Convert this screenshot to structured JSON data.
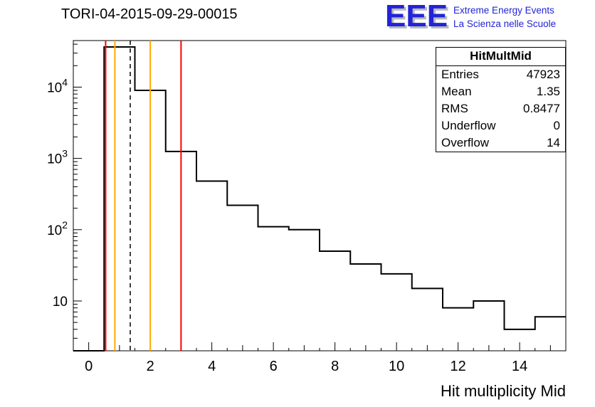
{
  "title": "TORI-04-2015-09-29-00015",
  "logo": {
    "acronym": "EEE",
    "line1": "Extreme Energy Events",
    "line2": "La Scienza nelle Scuole",
    "color": "#2323d8"
  },
  "stats": {
    "header": "HitMultMid",
    "rows": [
      {
        "label": "Entries",
        "value": "47923"
      },
      {
        "label": "Mean",
        "value": "1.35"
      },
      {
        "label": "RMS",
        "value": "0.8477"
      },
      {
        "label": "Underflow",
        "value": "0"
      },
      {
        "label": "Overflow",
        "value": "14"
      }
    ]
  },
  "chart_data": {
    "type": "bar",
    "style": "step-histogram",
    "title": "TORI-04-2015-09-29-00015",
    "hist_name": "HitMultMid",
    "xlabel": "Hit multiplicity Mid",
    "ylabel": "",
    "y_scale": "log",
    "xlim": [
      -0.5,
      15.5
    ],
    "ylim": [
      2,
      45000
    ],
    "x_ticks_major": [
      0,
      2,
      4,
      6,
      8,
      10,
      12,
      14
    ],
    "y_ticks_major": [
      10,
      100,
      1000,
      10000
    ],
    "bin_centers": [
      0,
      1,
      2,
      3,
      4,
      5,
      6,
      7,
      8,
      9,
      10,
      11,
      12,
      13,
      14,
      15
    ],
    "values": [
      0,
      36600,
      9000,
      1250,
      480,
      220,
      110,
      100,
      50,
      33,
      24,
      15,
      8,
      10,
      4,
      6
    ],
    "line_color": "#000000",
    "markers": {
      "red": [
        0.55,
        3.0
      ],
      "orange": [
        0.85,
        2.0
      ],
      "dashed_black": [
        1.35
      ]
    },
    "marker_colors": {
      "red": "#ff0000",
      "orange": "#ffaa00",
      "dashed_black": "#000000"
    },
    "grid": false,
    "legend": "stats-box-top-right"
  }
}
